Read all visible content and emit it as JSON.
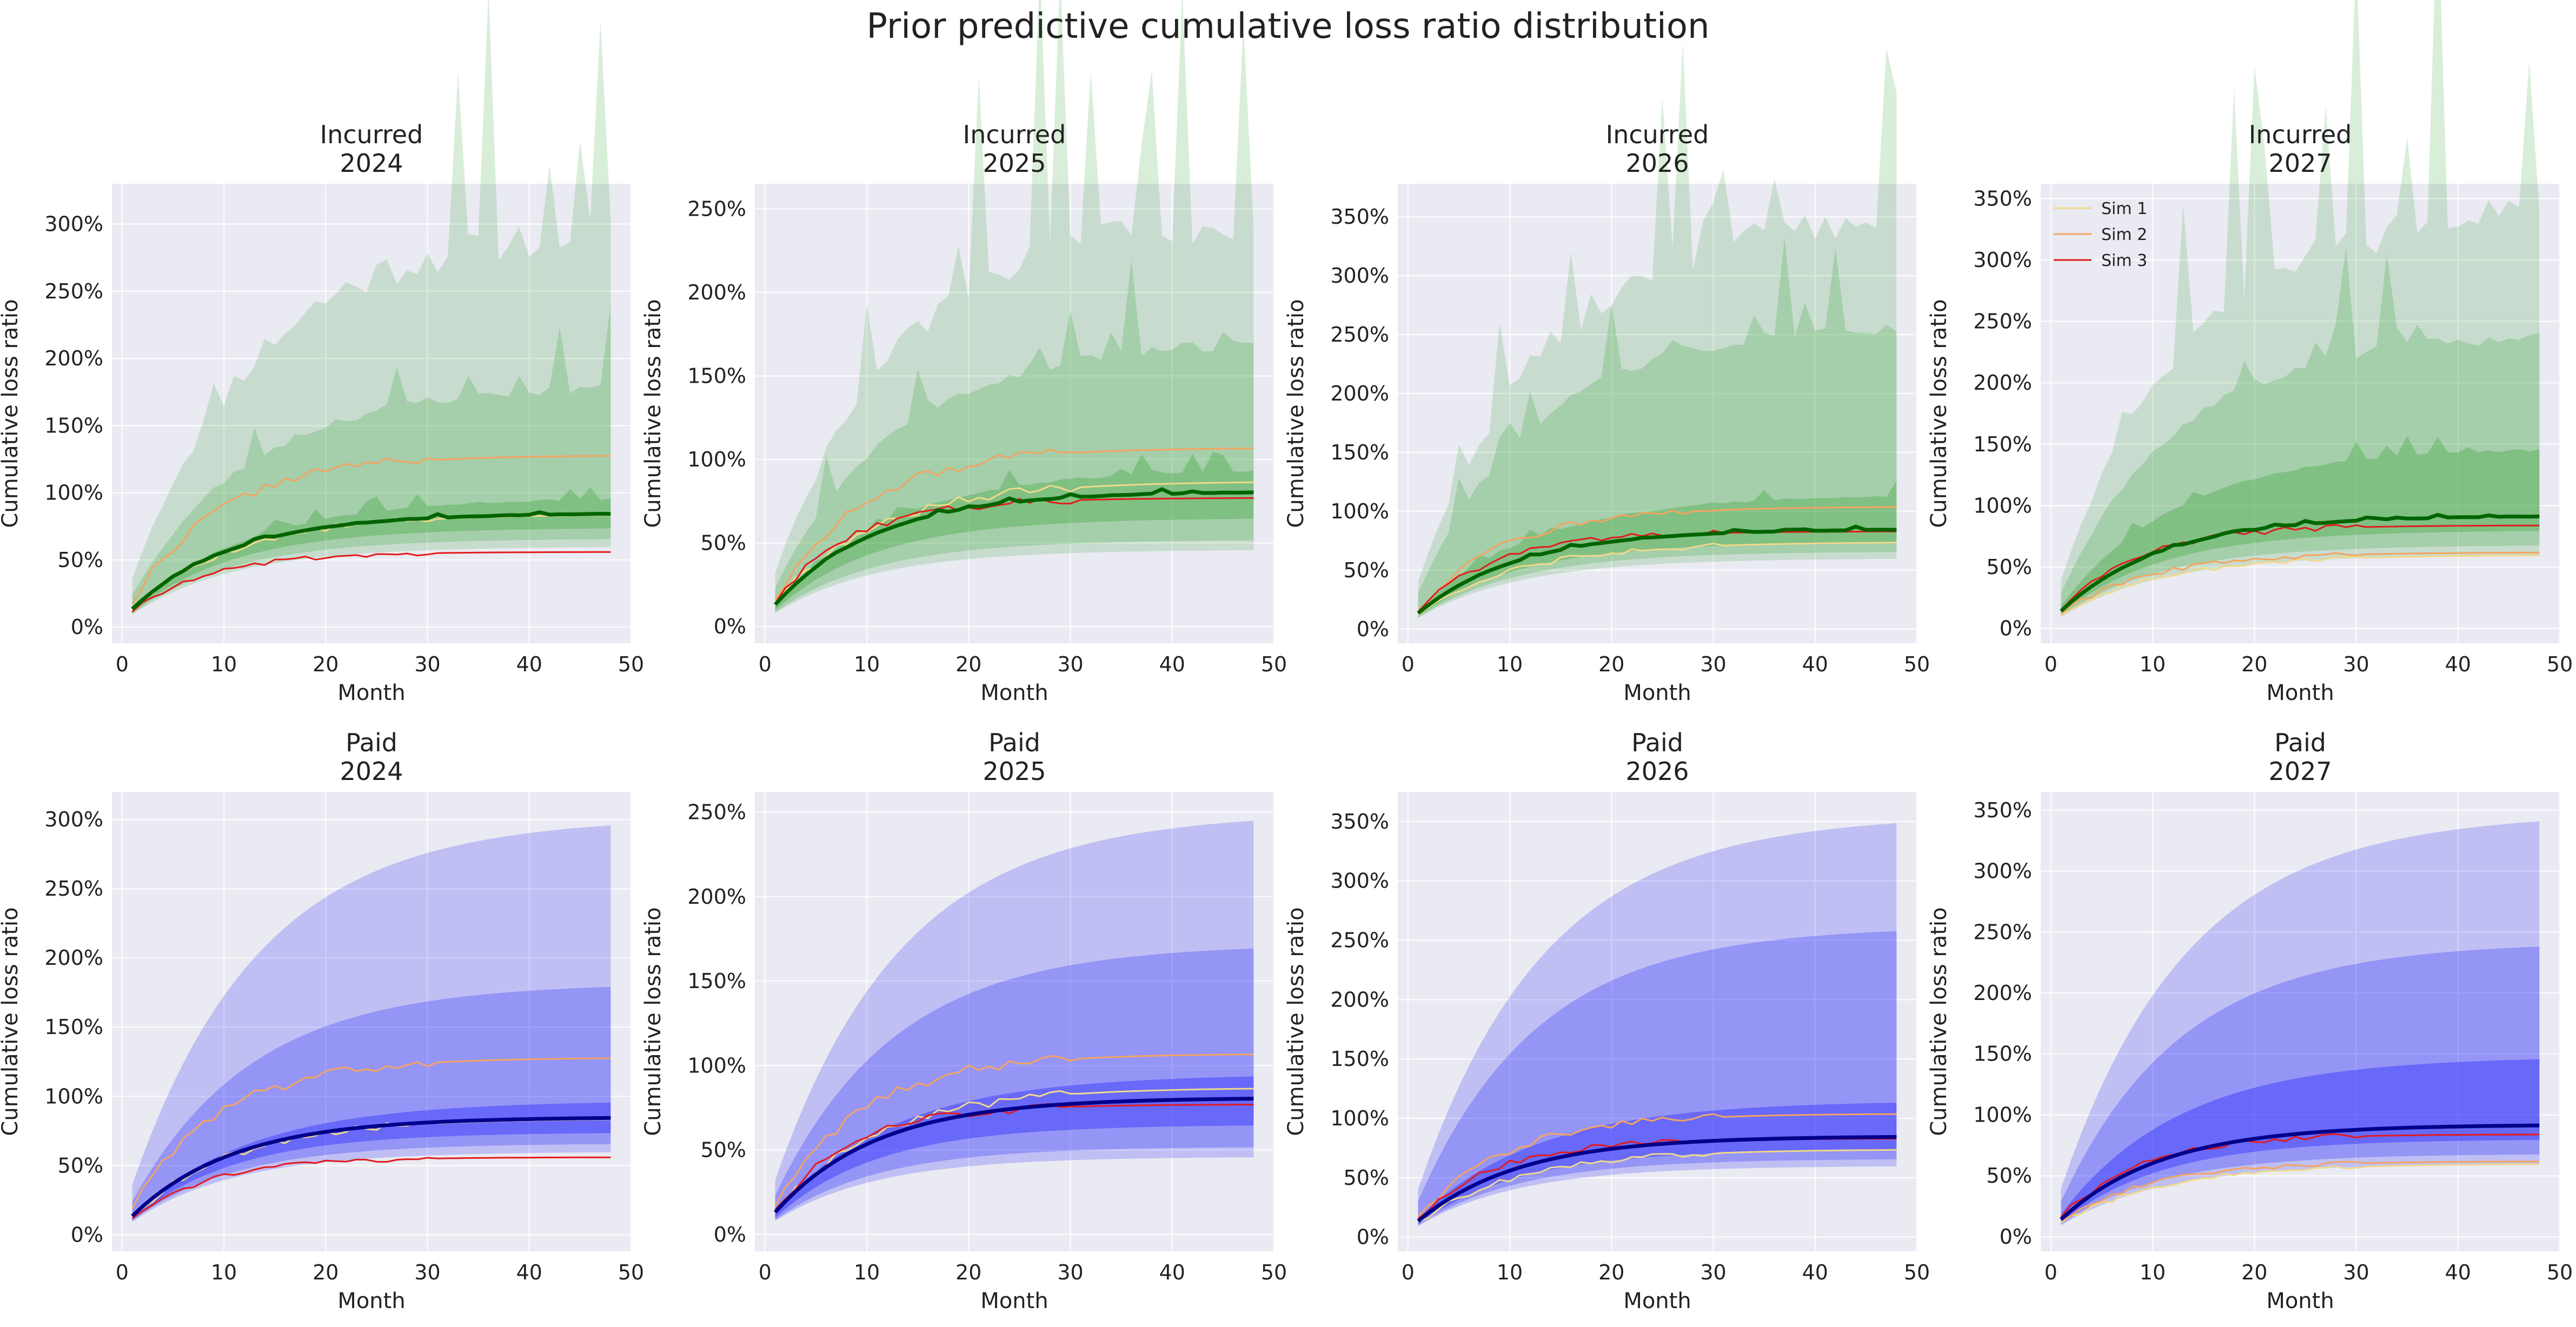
{
  "figure": {
    "title": "Prior predictive cumulative loss ratio distribution"
  },
  "colors": {
    "plot_bg": "#eaeaf2",
    "grid": "#ffffff",
    "incurred_band": "#2ca02c",
    "incurred_median": "#006400",
    "paid_band": "#0000ff",
    "paid_median": "#00008b",
    "sim1": "#f0d98a",
    "sim2": "#f4a460",
    "sim3": "#e31a1c"
  },
  "chart_data": [
    {
      "type": "area",
      "panel": "incurred-2024",
      "title_line1": "Incurred",
      "title_line2": "2024",
      "xlabel": "Month",
      "ylabel": "Cumulative loss ratio",
      "xlim": [
        -1,
        50
      ],
      "ylim": [
        -0.12,
        3.3
      ],
      "xticks": [
        0,
        10,
        20,
        30,
        40,
        50
      ],
      "yticks": [
        0,
        0.5,
        1.0,
        1.5,
        2.0,
        2.5,
        3.0
      ],
      "ytick_labels": [
        "0%",
        "50%",
        "100%",
        "150%",
        "200%",
        "250%",
        "300%"
      ],
      "bands": {
        "p99_hi": 3.02,
        "p95_hi": 1.82,
        "p75_hi": 0.97,
        "p25_lo": 0.74,
        "p05_lo": 0.66,
        "p01_lo": 0.6
      },
      "median_final": 0.85,
      "sims": [
        {
          "name": "Sim 1",
          "final": 0.84
        },
        {
          "name": "Sim 2",
          "final": 1.28
        },
        {
          "name": "Sim 3",
          "final": 0.56
        }
      ],
      "spiky": true,
      "legend": false
    },
    {
      "type": "area",
      "panel": "incurred-2025",
      "title_line1": "Incurred",
      "title_line2": "2025",
      "xlabel": "Month",
      "ylabel": "Cumulative loss ratio",
      "xlim": [
        -1,
        50
      ],
      "ylim": [
        -0.1,
        2.65
      ],
      "xticks": [
        0,
        10,
        20,
        30,
        40,
        50
      ],
      "yticks": [
        0,
        0.5,
        1.0,
        1.5,
        2.0,
        2.5
      ],
      "ytick_labels": [
        "0%",
        "50%",
        "100%",
        "150%",
        "200%",
        "250%"
      ],
      "bands": {
        "p99_hi": 2.5,
        "p95_hi": 1.72,
        "p75_hi": 0.95,
        "p25_lo": 0.65,
        "p05_lo": 0.52,
        "p01_lo": 0.46
      },
      "median_final": 0.81,
      "sims": [
        {
          "name": "Sim 1",
          "final": 0.87
        },
        {
          "name": "Sim 2",
          "final": 1.07
        },
        {
          "name": "Sim 3",
          "final": 0.77
        }
      ],
      "spiky": true,
      "legend": false
    },
    {
      "type": "area",
      "panel": "incurred-2026",
      "title_line1": "Incurred",
      "title_line2": "2026",
      "xlabel": "Month",
      "ylabel": "Cumulative loss ratio",
      "xlim": [
        -1,
        50
      ],
      "ylim": [
        -0.12,
        3.78
      ],
      "xticks": [
        0,
        10,
        20,
        30,
        40,
        50
      ],
      "yticks": [
        0,
        0.5,
        1.0,
        1.5,
        2.0,
        2.5,
        3.0,
        3.5
      ],
      "ytick_labels": [
        "0%",
        "50%",
        "100%",
        "150%",
        "200%",
        "250%",
        "300%",
        "350%"
      ],
      "bands": {
        "p99_hi": 3.56,
        "p95_hi": 2.62,
        "p75_hi": 1.15,
        "p25_lo": 0.74,
        "p05_lo": 0.66,
        "p01_lo": 0.6
      },
      "median_final": 0.85,
      "sims": [
        {
          "name": "Sim 1",
          "final": 0.74
        },
        {
          "name": "Sim 2",
          "final": 1.04
        },
        {
          "name": "Sim 3",
          "final": 0.83
        }
      ],
      "spiky": true,
      "legend": false
    },
    {
      "type": "area",
      "panel": "incurred-2027",
      "title_line1": "Incurred",
      "title_line2": "2027",
      "xlabel": "Month",
      "ylabel": "Cumulative loss ratio",
      "xlim": [
        -1,
        50
      ],
      "ylim": [
        -0.12,
        3.62
      ],
      "xticks": [
        0,
        10,
        20,
        30,
        40,
        50
      ],
      "yticks": [
        0,
        0.5,
        1.0,
        1.5,
        2.0,
        2.5,
        3.0,
        3.5
      ],
      "ytick_labels": [
        "0%",
        "50%",
        "100%",
        "150%",
        "200%",
        "250%",
        "300%",
        "350%"
      ],
      "bands": {
        "p99_hi": 3.48,
        "p95_hi": 2.42,
        "p75_hi": 1.48,
        "p25_lo": 0.8,
        "p05_lo": 0.68,
        "p01_lo": 0.6
      },
      "median_final": 0.92,
      "sims": [
        {
          "name": "Sim 1",
          "final": 0.6
        },
        {
          "name": "Sim 2",
          "final": 0.62
        },
        {
          "name": "Sim 3",
          "final": 0.84
        }
      ],
      "spiky": true,
      "legend": true
    },
    {
      "type": "area",
      "panel": "paid-2024",
      "title_line1": "Paid",
      "title_line2": "2024",
      "xlabel": "Month",
      "ylabel": "Cumulative loss ratio",
      "xlim": [
        -1,
        50
      ],
      "ylim": [
        -0.12,
        3.2
      ],
      "xticks": [
        0,
        10,
        20,
        30,
        40,
        50
      ],
      "yticks": [
        0,
        0.5,
        1.0,
        1.5,
        2.0,
        2.5,
        3.0
      ],
      "ytick_labels": [
        "0%",
        "50%",
        "100%",
        "150%",
        "200%",
        "250%",
        "300%"
      ],
      "bands": {
        "p99_hi": 3.02,
        "p95_hi": 1.82,
        "p75_hi": 0.97,
        "p25_lo": 0.74,
        "p05_lo": 0.66,
        "p01_lo": 0.6
      },
      "median_final": 0.85,
      "sims": [
        {
          "name": "Sim 1",
          "final": 0.84
        },
        {
          "name": "Sim 2",
          "final": 1.28
        },
        {
          "name": "Sim 3",
          "final": 0.56
        }
      ],
      "spiky": false,
      "legend": false
    },
    {
      "type": "area",
      "panel": "paid-2025",
      "title_line1": "Paid",
      "title_line2": "2025",
      "xlabel": "Month",
      "ylabel": "Cumulative loss ratio",
      "xlim": [
        -1,
        50
      ],
      "ylim": [
        -0.1,
        2.62
      ],
      "xticks": [
        0,
        10,
        20,
        30,
        40,
        50
      ],
      "yticks": [
        0,
        0.5,
        1.0,
        1.5,
        2.0,
        2.5
      ],
      "ytick_labels": [
        "0%",
        "50%",
        "100%",
        "150%",
        "200%",
        "250%"
      ],
      "bands": {
        "p99_hi": 2.5,
        "p95_hi": 1.72,
        "p75_hi": 0.95,
        "p25_lo": 0.65,
        "p05_lo": 0.52,
        "p01_lo": 0.46
      },
      "median_final": 0.81,
      "sims": [
        {
          "name": "Sim 1",
          "final": 0.87
        },
        {
          "name": "Sim 2",
          "final": 1.07
        },
        {
          "name": "Sim 3",
          "final": 0.77
        }
      ],
      "spiky": false,
      "legend": false
    },
    {
      "type": "area",
      "panel": "paid-2026",
      "title_line1": "Paid",
      "title_line2": "2026",
      "xlabel": "Month",
      "ylabel": "Cumulative loss ratio",
      "xlim": [
        -1,
        50
      ],
      "ylim": [
        -0.12,
        3.75
      ],
      "xticks": [
        0,
        10,
        20,
        30,
        40,
        50
      ],
      "yticks": [
        0,
        0.5,
        1.0,
        1.5,
        2.0,
        2.5,
        3.0,
        3.5
      ],
      "ytick_labels": [
        "0%",
        "50%",
        "100%",
        "150%",
        "200%",
        "250%",
        "300%",
        "350%"
      ],
      "bands": {
        "p99_hi": 3.56,
        "p95_hi": 2.62,
        "p75_hi": 1.15,
        "p25_lo": 0.74,
        "p05_lo": 0.66,
        "p01_lo": 0.6
      },
      "median_final": 0.85,
      "sims": [
        {
          "name": "Sim 1",
          "final": 0.74
        },
        {
          "name": "Sim 2",
          "final": 1.04
        },
        {
          "name": "Sim 3",
          "final": 0.83
        }
      ],
      "spiky": false,
      "legend": false
    },
    {
      "type": "area",
      "panel": "paid-2027",
      "title_line1": "Paid",
      "title_line2": "2027",
      "xlabel": "Month",
      "ylabel": "Cumulative loss ratio",
      "xlim": [
        -1,
        50
      ],
      "ylim": [
        -0.12,
        3.65
      ],
      "xticks": [
        0,
        10,
        20,
        30,
        40,
        50
      ],
      "yticks": [
        0,
        0.5,
        1.0,
        1.5,
        2.0,
        2.5,
        3.0,
        3.5
      ],
      "ytick_labels": [
        "0%",
        "50%",
        "100%",
        "150%",
        "200%",
        "250%",
        "300%",
        "350%"
      ],
      "bands": {
        "p99_hi": 3.48,
        "p95_hi": 2.42,
        "p75_hi": 1.48,
        "p25_lo": 0.8,
        "p05_lo": 0.68,
        "p01_lo": 0.6
      },
      "median_final": 0.92,
      "sims": [
        {
          "name": "Sim 1",
          "final": 0.6
        },
        {
          "name": "Sim 2",
          "final": 0.62
        },
        {
          "name": "Sim 3",
          "final": 0.84
        }
      ],
      "spiky": false,
      "legend": false
    }
  ]
}
